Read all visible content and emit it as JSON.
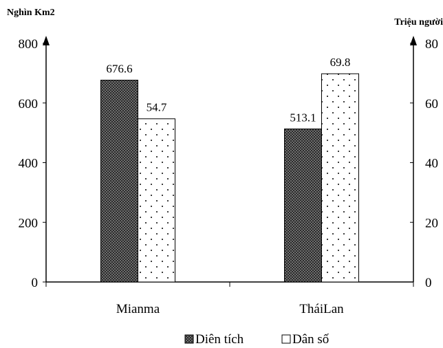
{
  "chart_data": {
    "type": "bar",
    "categories": [
      "Mianma",
      "TháiLan"
    ],
    "series": [
      {
        "name": "Diện tích",
        "values": [
          676.6,
          513.1
        ],
        "axis": "left",
        "pattern": "dark-checker"
      },
      {
        "name": "Dân số",
        "values": [
          54.7,
          69.8
        ],
        "axis": "right",
        "pattern": "dotted-white"
      }
    ],
    "value_labels": [
      [
        "676.6",
        "513.1"
      ],
      [
        "54.7",
        "69.8"
      ]
    ],
    "left_axis": {
      "unit": "Nghìn Km2",
      "range": [
        0,
        800
      ],
      "ticks": [
        "0",
        "200",
        "400",
        "600",
        "800"
      ]
    },
    "right_axis": {
      "unit": "Triệu người",
      "range": [
        0,
        80
      ],
      "ticks": [
        "0",
        "20",
        "40",
        "60",
        "80"
      ]
    },
    "legend": {
      "position": "bottom",
      "entries": [
        "Diên tích",
        "Dân số"
      ]
    },
    "grid": false
  }
}
